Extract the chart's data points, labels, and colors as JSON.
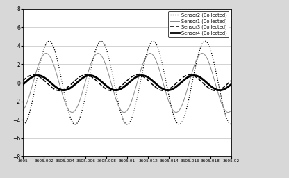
{
  "x_start": 3605.0,
  "x_end": 3605.02,
  "ylim": [
    -8,
    8
  ],
  "yticks": [
    -8,
    -6,
    -4,
    -2,
    0,
    2,
    4,
    6,
    8
  ],
  "sensor2_amplitude": 4.5,
  "sensor2_phase": -1.57,
  "sensor1_amplitude": 3.2,
  "sensor1_phase": -1.2,
  "sensor3_amplitude": 0.85,
  "sensor3_phase": 0.3,
  "sensor4_amplitude": 0.8,
  "sensor4_phase": -0.2,
  "frequency": 200,
  "outer_bg_color": "#d8d8d8",
  "plot_bg_color": "#ffffff",
  "legend_labels": [
    "Sensor2 (Collected)",
    "Sensor1 (Collected)",
    "Sensor3 (Collected)",
    "Sensor4 (Collected)"
  ],
  "xtick_positions": [
    3605.0,
    3605.002,
    3605.004,
    3605.006,
    3605.008,
    3605.01,
    3605.012,
    3605.014,
    3605.016,
    3605.018,
    3605.02
  ],
  "xtick_labels": [
    "3605",
    "3605.002",
    "3605.004",
    "3605.006",
    "3605.008",
    "3605.01",
    "3605.012",
    "3605.014",
    "3605.016",
    "3605.018",
    "3605.02"
  ]
}
